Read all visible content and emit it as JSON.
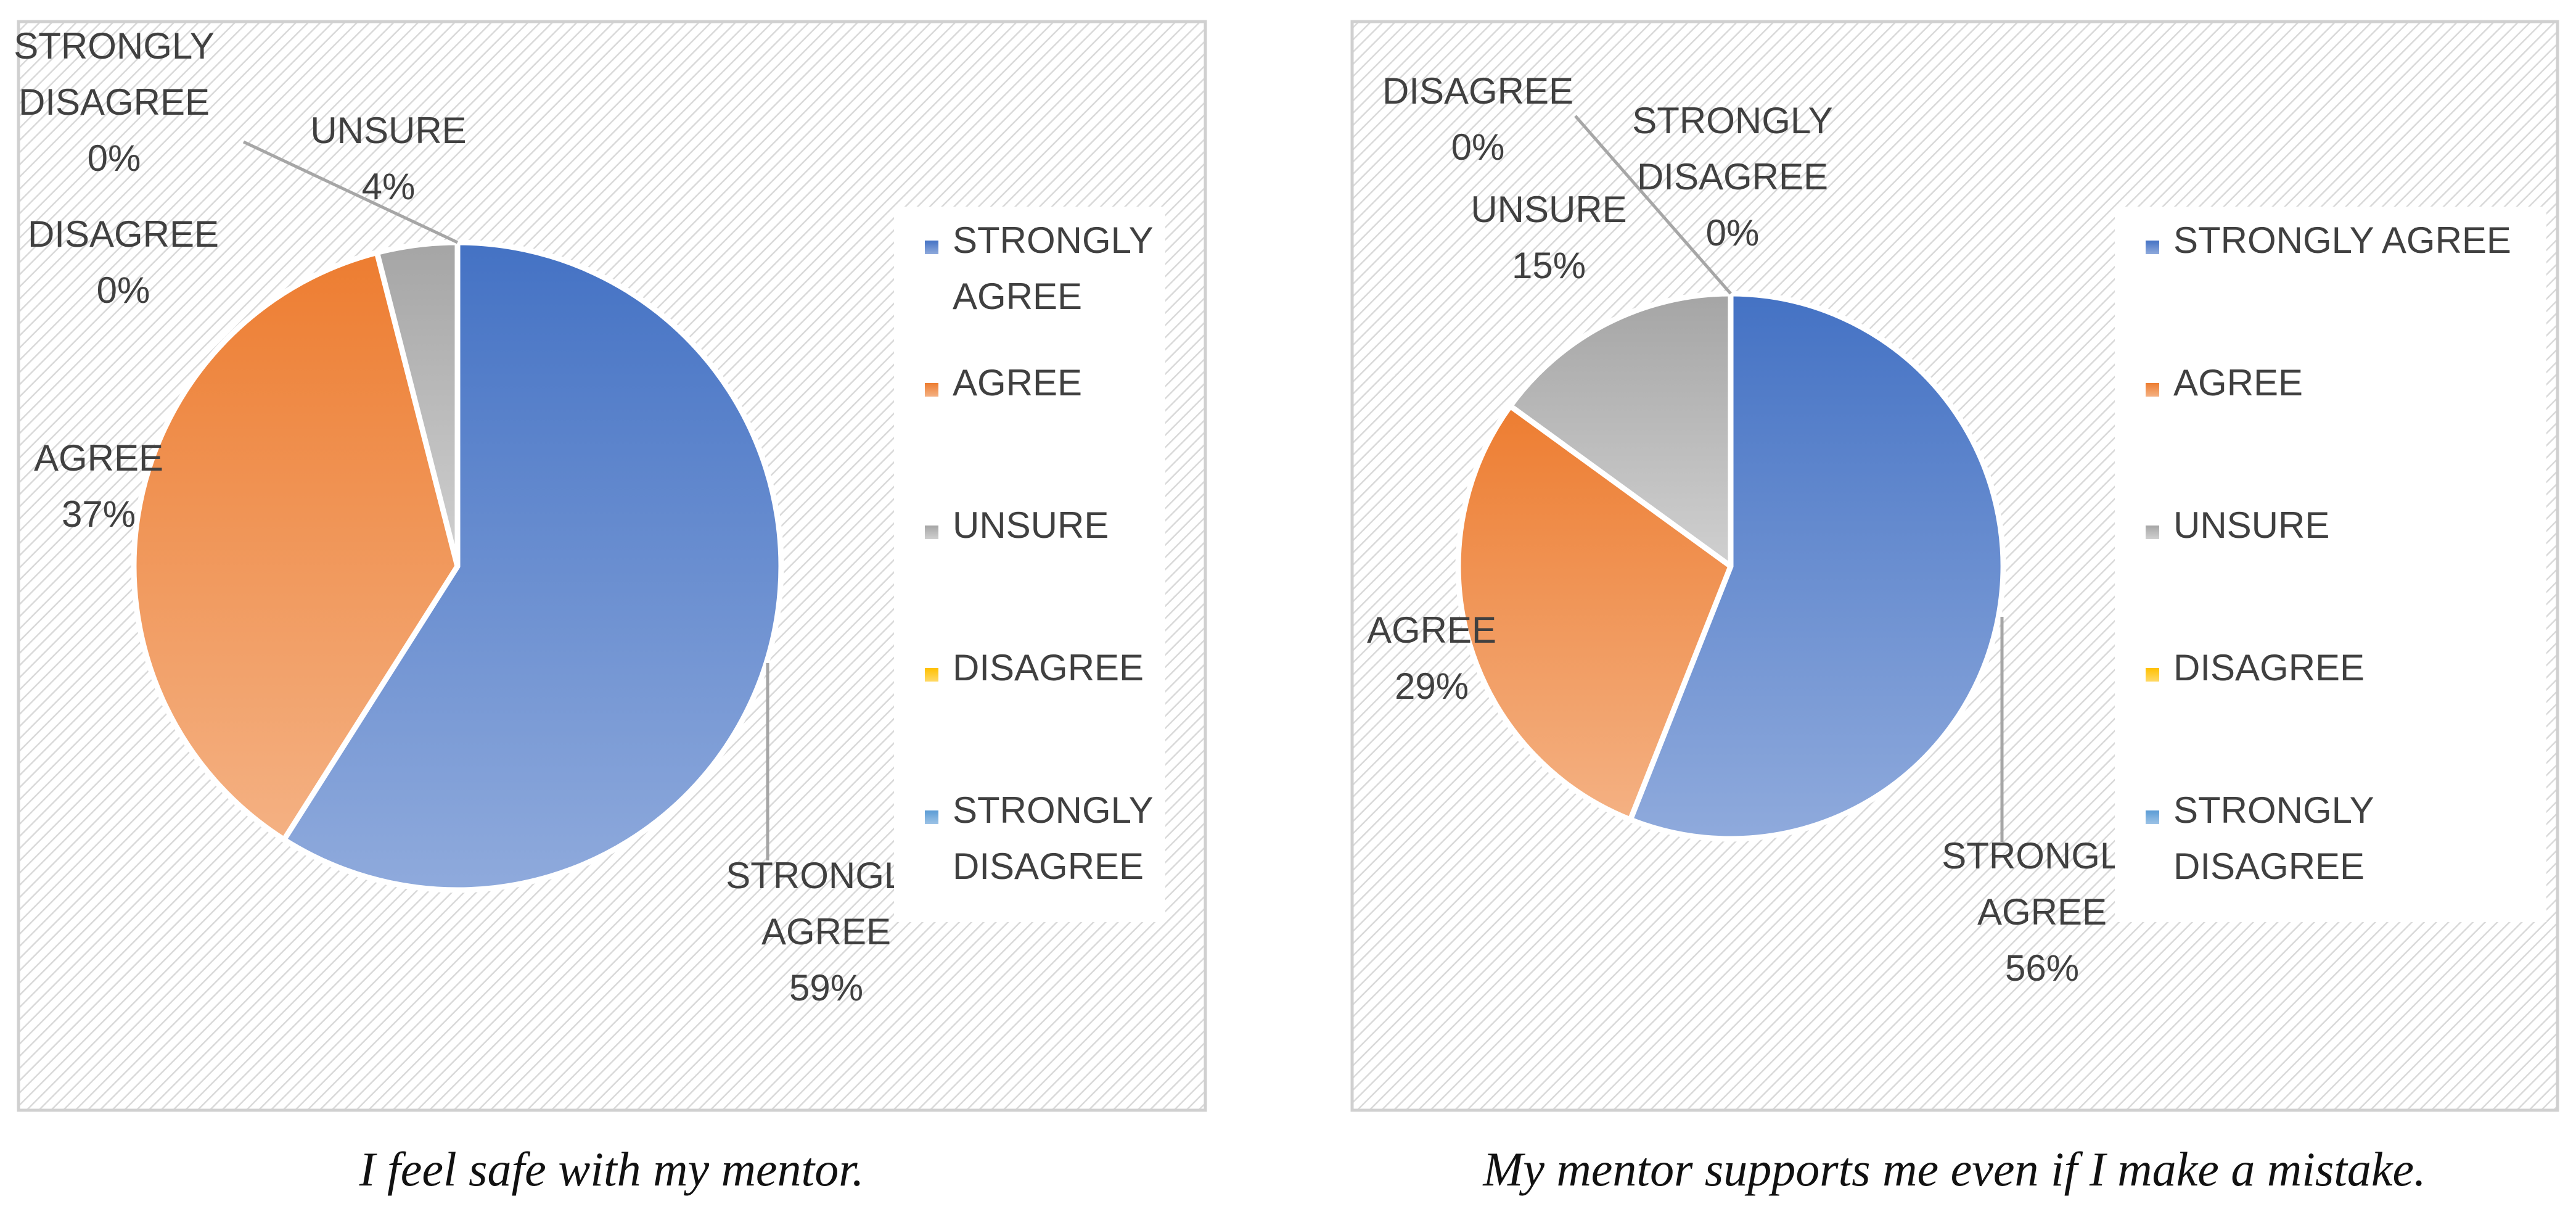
{
  "colors": {
    "strongly_agree": [
      "#4472c4",
      "#8faadc"
    ],
    "agree": [
      "#ed7d31",
      "#f4b183"
    ],
    "unsure": [
      "#a5a5a5",
      "#d0d0d0"
    ],
    "disagree": [
      "#ffc000",
      "#ffd966"
    ],
    "strongly_disagree": [
      "#5b9bd5",
      "#9dc3e6"
    ]
  },
  "chart_data": [
    {
      "type": "pie",
      "caption": "I feel safe with my mentor.",
      "legend_position": "right",
      "categories": [
        "STRONGLY AGREE",
        "AGREE",
        "UNSURE",
        "DISAGREE",
        "STRONGLY DISAGREE"
      ],
      "values": [
        59,
        37,
        4,
        0,
        0
      ],
      "data_labels": [
        {
          "lines": [
            "STRONGLY",
            "AGREE",
            "59%"
          ]
        },
        {
          "lines": [
            "AGREE",
            "37%"
          ]
        },
        {
          "lines": [
            "UNSURE",
            "4%"
          ]
        },
        {
          "lines": [
            "DISAGREE",
            "0%"
          ]
        },
        {
          "lines": [
            "STRONGLY",
            "DISAGREE",
            "0%"
          ]
        }
      ],
      "legend": [
        {
          "lines": [
            "STRONGLY",
            "AGREE"
          ]
        },
        {
          "lines": [
            "AGREE"
          ]
        },
        {
          "lines": [
            "UNSURE"
          ]
        },
        {
          "lines": [
            "DISAGREE"
          ]
        },
        {
          "lines": [
            "STRONGLY",
            "DISAGREE"
          ]
        }
      ]
    },
    {
      "type": "pie",
      "caption": "My mentor supports me even if I make a mistake.",
      "legend_position": "right",
      "categories": [
        "STRONGLY AGREE",
        "AGREE",
        "UNSURE",
        "DISAGREE",
        "STRONGLY DISAGREE"
      ],
      "values": [
        56,
        29,
        15,
        0,
        0
      ],
      "data_labels": [
        {
          "lines": [
            "STRONGLY",
            "AGREE",
            "56%"
          ]
        },
        {
          "lines": [
            "AGREE",
            "29%"
          ]
        },
        {
          "lines": [
            "UNSURE",
            "15%"
          ]
        },
        {
          "lines": [
            "DISAGREE",
            "0%"
          ]
        },
        {
          "lines": [
            "STRONGLY",
            "DISAGREE",
            "0%"
          ]
        }
      ],
      "legend": [
        {
          "lines": [
            "STRONGLY AGREE"
          ]
        },
        {
          "lines": [
            "AGREE"
          ]
        },
        {
          "lines": [
            "UNSURE"
          ]
        },
        {
          "lines": [
            "DISAGREE"
          ]
        },
        {
          "lines": [
            "STRONGLY",
            "DISAGREE"
          ]
        }
      ]
    }
  ]
}
